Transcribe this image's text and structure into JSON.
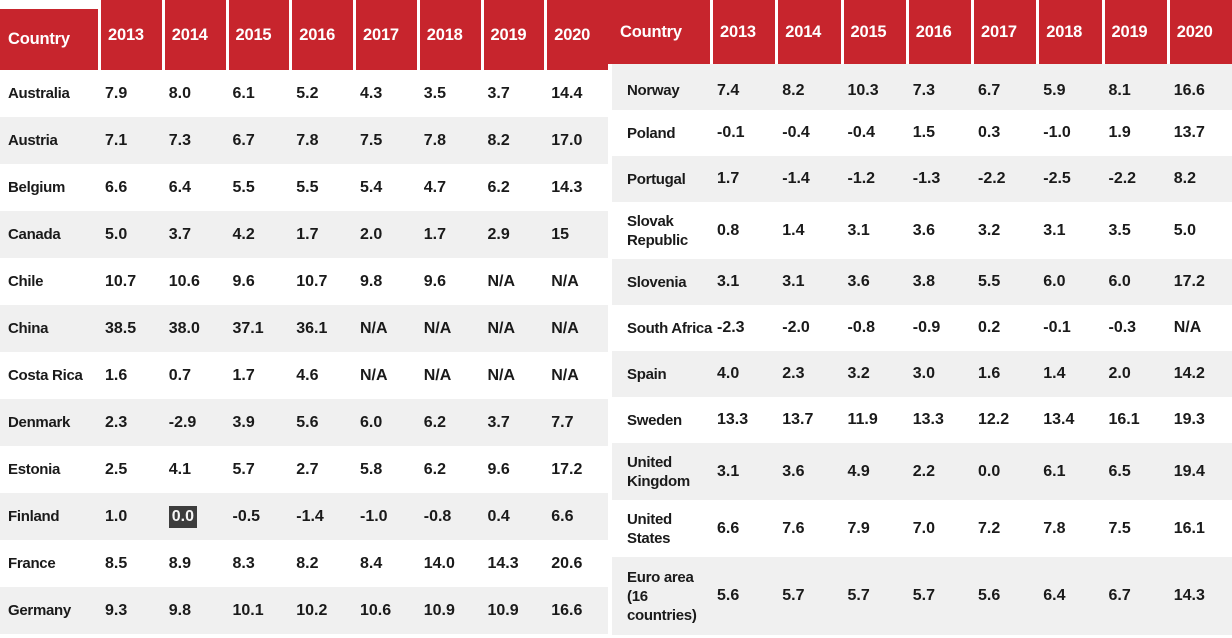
{
  "colors": {
    "header_red": "#c7252d",
    "stripe_gray": "#f0f0f0",
    "text": "#1a1a1a",
    "highlight_bg": "#3d3d3d",
    "highlight_text": "#f7f7f7"
  },
  "chart_data": {
    "type": "table",
    "column_headers": [
      "Country",
      "2013",
      "2014",
      "2015",
      "2016",
      "2017",
      "2018",
      "2019",
      "2020"
    ],
    "na_label": "N/A",
    "left_table_rows": [
      {
        "country": "Australia",
        "values": [
          "7.9",
          "8.0",
          "6.1",
          "5.2",
          "4.3",
          "3.5",
          "3.7",
          "14.4"
        ]
      },
      {
        "country": "Austria",
        "values": [
          "7.1",
          "7.3",
          "6.7",
          "7.8",
          "7.5",
          "7.8",
          "8.2",
          "17.0"
        ]
      },
      {
        "country": "Belgium",
        "values": [
          "6.6",
          "6.4",
          "5.5",
          "5.5",
          "5.4",
          "4.7",
          "6.2",
          "14.3"
        ]
      },
      {
        "country": "Canada",
        "values": [
          "5.0",
          "3.7",
          "4.2",
          "1.7",
          "2.0",
          "1.7",
          "2.9",
          "15"
        ]
      },
      {
        "country": "Chile",
        "values": [
          "10.7",
          "10.6",
          "9.6",
          "10.7",
          "9.8",
          "9.6",
          "N/A",
          "N/A"
        ]
      },
      {
        "country": "China",
        "values": [
          "38.5",
          "38.0",
          "37.1",
          "36.1",
          "N/A",
          "N/A",
          "N/A",
          "N/A"
        ]
      },
      {
        "country": "Costa Rica",
        "values": [
          "1.6",
          "0.7",
          "1.7",
          "4.6",
          "N/A",
          "N/A",
          "N/A",
          "N/A"
        ]
      },
      {
        "country": "Denmark",
        "values": [
          "2.3",
          "-2.9",
          "3.9",
          "5.6",
          "6.0",
          "6.2",
          "3.7",
          "7.7"
        ]
      },
      {
        "country": "Estonia",
        "values": [
          "2.5",
          "4.1",
          "5.7",
          "2.7",
          "5.8",
          "6.2",
          "9.6",
          "17.2"
        ]
      },
      {
        "country": "Finland",
        "values": [
          "1.0",
          "0.0",
          "-0.5",
          "-1.4",
          "-1.0",
          "-0.8",
          "0.4",
          "6.6"
        ]
      },
      {
        "country": "France",
        "values": [
          "8.5",
          "8.9",
          "8.3",
          "8.2",
          "8.4",
          "14.0",
          "14.3",
          "20.6"
        ]
      },
      {
        "country": "Germany",
        "values": [
          "9.3",
          "9.8",
          "10.1",
          "10.2",
          "10.6",
          "10.9",
          "10.9",
          "16.6"
        ]
      }
    ],
    "right_table_rows": [
      {
        "country": "Norway",
        "values": [
          "7.4",
          "8.2",
          "10.3",
          "7.3",
          "6.7",
          "5.9",
          "8.1",
          "16.6"
        ]
      },
      {
        "country": "Poland",
        "values": [
          "-0.1",
          "-0.4",
          "-0.4",
          "1.5",
          "0.3",
          "-1.0",
          "1.9",
          "13.7"
        ]
      },
      {
        "country": "Portugal",
        "values": [
          "1.7",
          "-1.4",
          "-1.2",
          "-1.3",
          "-2.2",
          "-2.5",
          "-2.2",
          "8.2"
        ]
      },
      {
        "country": "Slovak Republic",
        "display": "Slovak\nRepublic",
        "values": [
          "0.8",
          "1.4",
          "3.1",
          "3.6",
          "3.2",
          "3.1",
          "3.5",
          "5.0"
        ]
      },
      {
        "country": "Slovenia",
        "values": [
          "3.1",
          "3.1",
          "3.6",
          "3.8",
          "5.5",
          "6.0",
          "6.0",
          "17.2"
        ]
      },
      {
        "country": "South Africa",
        "values": [
          "-2.3",
          "-2.0",
          "-0.8",
          "-0.9",
          "0.2",
          "-0.1",
          "-0.3",
          "N/A"
        ]
      },
      {
        "country": "Spain",
        "values": [
          "4.0",
          "2.3",
          "3.2",
          "3.0",
          "1.6",
          "1.4",
          "2.0",
          "14.2"
        ]
      },
      {
        "country": "Sweden",
        "values": [
          "13.3",
          "13.7",
          "11.9",
          "13.3",
          "12.2",
          "13.4",
          "16.1",
          "19.3"
        ]
      },
      {
        "country": "United Kingdom",
        "display": "United\nKingdom",
        "values": [
          "3.1",
          "3.6",
          "4.9",
          "2.2",
          "0.0",
          "6.1",
          "6.5",
          "19.4"
        ]
      },
      {
        "country": "United States",
        "display": "United\nStates",
        "values": [
          "6.6",
          "7.6",
          "7.9",
          "7.0",
          "7.2",
          "7.8",
          "7.5",
          "16.1"
        ]
      },
      {
        "country": "Euro area (16 countries)",
        "display": "Euro area\n(16\ncountries)",
        "values": [
          "5.6",
          "5.7",
          "5.7",
          "5.7",
          "5.6",
          "6.4",
          "6.7",
          "14.3"
        ]
      }
    ],
    "highlighted_cell": {
      "table": "left_table_rows",
      "row_index": 9,
      "value_index": 1,
      "country": "Finland",
      "year": "2014",
      "value": "0.0"
    }
  }
}
